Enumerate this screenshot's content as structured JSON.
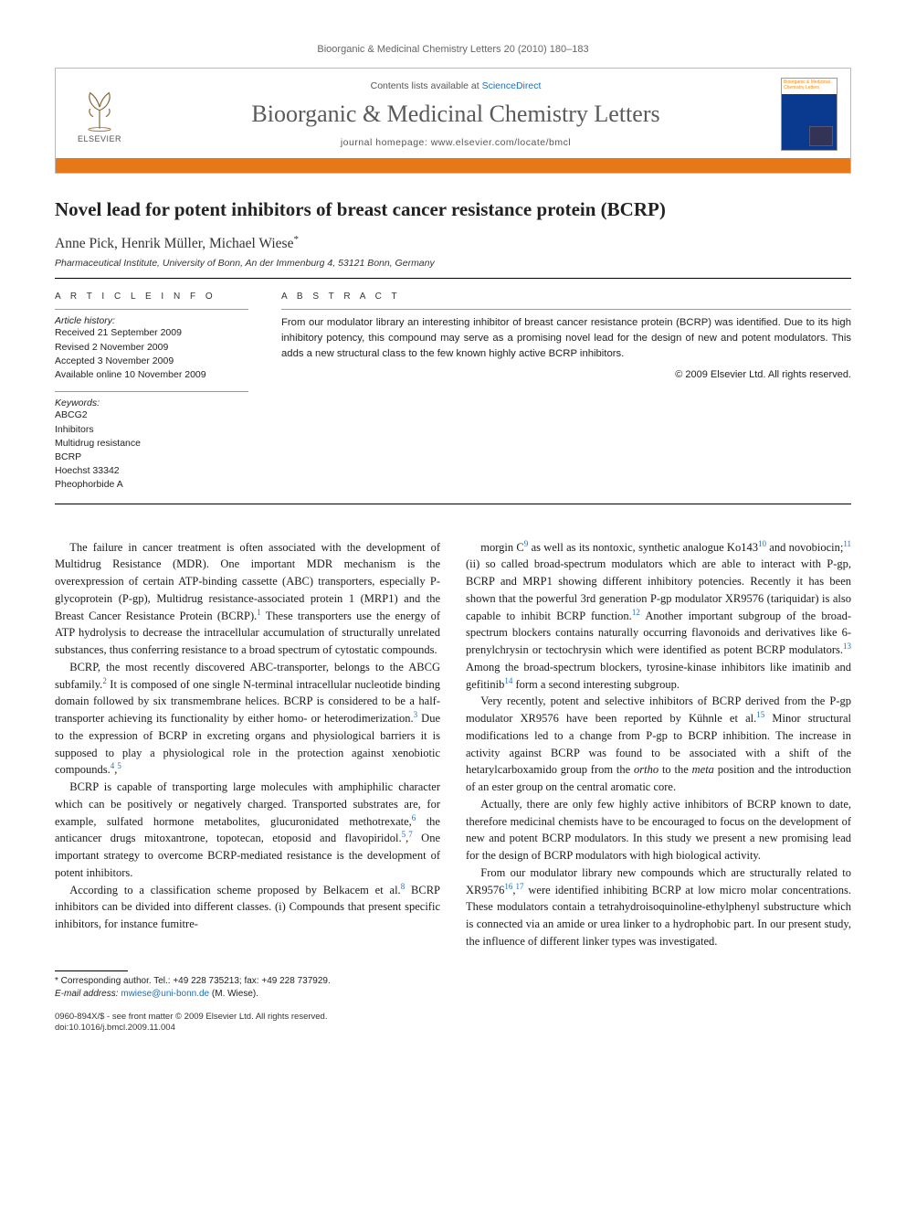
{
  "running_head": "Bioorganic & Medicinal Chemistry Letters 20 (2010) 180–183",
  "masthead": {
    "publisher": "ELSEVIER",
    "contents_prefix": "Contents lists available at ",
    "contents_link": "ScienceDirect",
    "journal_title": "Bioorganic & Medicinal Chemistry Letters",
    "homepage_prefix": "journal homepage: ",
    "homepage_url": "www.elsevier.com/locate/bmcl",
    "cover_caption": "Bioorganic & Medicinal Chemistry Letters",
    "orange_bar_color": "#e67817"
  },
  "article": {
    "title": "Novel lead for potent inhibitors of breast cancer resistance protein (BCRP)",
    "authors": "Anne Pick, Henrik Müller, Michael Wiese",
    "corr_marker": "*",
    "affiliation": "Pharmaceutical Institute, University of Bonn, An der Immenburg 4, 53121 Bonn, Germany"
  },
  "info": {
    "heading": "A R T I C L E   I N F O",
    "history_label": "Article history:",
    "history": [
      "Received 21 September 2009",
      "Revised 2 November 2009",
      "Accepted 3 November 2009",
      "Available online 10 November 2009"
    ],
    "keywords_label": "Keywords:",
    "keywords": [
      "ABCG2",
      "Inhibitors",
      "Multidrug resistance",
      "BCRP",
      "Hoechst 33342",
      "Pheophorbide A"
    ]
  },
  "abstract": {
    "heading": "A B S T R A C T",
    "text": "From our modulator library an interesting inhibitor of breast cancer resistance protein (BCRP) was identified. Due to its high inhibitory potency, this compound may serve as a promising novel lead for the design of new and potent modulators. This adds a new structural class to the few known highly active BCRP inhibitors.",
    "copyright": "© 2009 Elsevier Ltd. All rights reserved."
  },
  "body": {
    "p1": "The failure in cancer treatment is often associated with the development of Multidrug Resistance (MDR). One important MDR mechanism is the overexpression of certain ATP-binding cassette (ABC) transporters, especially P-glycoprotein (P-gp), Multidrug resistance-associated protein 1 (MRP1) and the Breast Cancer Resistance Protein (BCRP).¹ These transporters use the energy of ATP hydrolysis to decrease the intracellular accumulation of structurally unrelated substances, thus conferring resistance to a broad spectrum of cytostatic compounds.",
    "p2": "BCRP, the most recently discovered ABC-transporter, belongs to the ABCG subfamily.² It is composed of one single N-terminal intracellular nucleotide binding domain followed by six transmembrane helices. BCRP is considered to be a half-transporter achieving its functionality by either homo- or heterodimerization.³ Due to the expression of BCRP in excreting organs and physiological barriers it is supposed to play a physiological role in the protection against xenobiotic compounds.⁴,⁵",
    "p3": "BCRP is capable of transporting large molecules with amphiphilic character which can be positively or negatively charged. Transported substrates are, for example, sulfated hormone metabolites, glucuronidated methotrexate,⁶ the anticancer drugs mitoxantrone, topotecan, etoposid and flavopiridol.⁵,⁷ One important strategy to overcome BCRP-mediated resistance is the development of potent inhibitors.",
    "p4": "According to a classification scheme proposed by Belkacem et al.⁸ BCRP inhibitors can be divided into different classes. (i) Compounds that present specific inhibitors, for instance fumitre-",
    "p5": "morgin C⁹ as well as its nontoxic, synthetic analogue Ko143¹⁰ and novobiocin;¹¹ (ii) so called broad-spectrum modulators which are able to interact with P-gp, BCRP and MRP1 showing different inhibitory potencies. Recently it has been shown that the powerful 3rd generation P-gp modulator XR9576 (tariquidar) is also capable to inhibit BCRP function.¹² Another important subgroup of the broad-spectrum blockers contains naturally occurring flavonoids and derivatives like 6-prenylchrysin or tectochrysin which were identified as potent BCRP modulators.¹³ Among the broad-spectrum blockers, tyrosine-kinase inhibitors like imatinib and gefitinib¹⁴ form a second interesting subgroup.",
    "p6": "Very recently, potent and selective inhibitors of BCRP derived from the P-gp modulator XR9576 have been reported by Kühnle et al.¹⁵ Minor structural modifications led to a change from P-gp to BCRP inhibition. The increase in activity against BCRP was found to be associated with a shift of the hetarylcarboxamido group from the ortho to the meta position and the introduction of an ester group on the central aromatic core.",
    "p7": "Actually, there are only few highly active inhibitors of BCRP known to date, therefore medicinal chemists have to be encouraged to focus on the development of new and potent BCRP modulators. In this study we present a new promising lead for the design of BCRP modulators with high biological activity.",
    "p8": "From our modulator library new compounds which are structurally related to XR9576¹⁶,¹⁷ were identified inhibiting BCRP at low micro molar concentrations. These modulators contain a tetrahydroisoquinoline-ethylphenyl substructure which is connected via an amide or urea linker to a hydrophobic part. In our present study, the influence of different linker types was investigated."
  },
  "footnote": {
    "line1": "* Corresponding author. Tel.: +49 228 735213; fax: +49 228 737929.",
    "line2_label": "E-mail address:",
    "line2_email": "mwiese@uni-bonn.de",
    "line2_suffix": " (M. Wiese)."
  },
  "footer": {
    "line1": "0960-894X/$ - see front matter © 2009 Elsevier Ltd. All rights reserved.",
    "line2": "doi:10.1016/j.bmcl.2009.11.004"
  },
  "colors": {
    "link": "#1a6fbf",
    "orange": "#e67817",
    "text": "#1a1a1a",
    "grey": "#666666"
  }
}
